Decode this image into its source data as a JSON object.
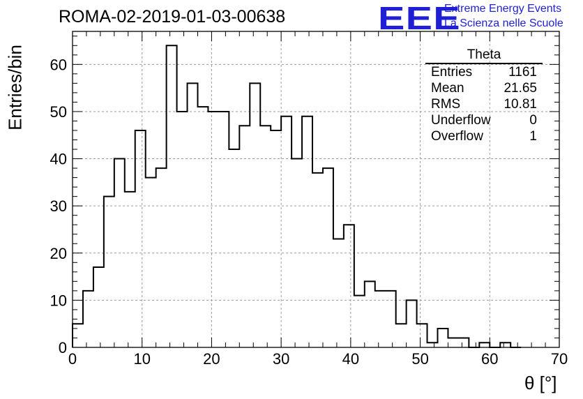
{
  "header": {
    "title": "ROMA-02-2019-01-03-00638"
  },
  "logo": {
    "mark": "EEE",
    "line1": "Extreme Energy Events",
    "line2": "La Scienza nelle Scuole"
  },
  "stats": {
    "title": "Theta",
    "rows": [
      {
        "label": "Entries",
        "value": "1161"
      },
      {
        "label": "Mean",
        "value": "21.65"
      },
      {
        "label": "RMS",
        "value": "10.81"
      },
      {
        "label": "Underflow",
        "value": "0"
      },
      {
        "label": "Overflow",
        "value": "1"
      }
    ]
  },
  "chart_data": {
    "type": "histogram",
    "title": "ROMA-02-2019-01-03-00638",
    "xlabel": "θ [°]",
    "ylabel": "Entries/bin",
    "xlim": [
      0,
      70
    ],
    "ylim": [
      0,
      67
    ],
    "bin_width": 1.5,
    "bin_start": 0,
    "values": [
      5,
      12,
      17,
      32,
      40,
      33,
      46,
      36,
      38,
      64,
      50,
      56,
      51,
      50,
      50,
      42,
      47,
      56,
      47,
      46,
      49,
      40,
      49,
      37,
      38,
      23,
      26,
      11,
      14,
      12,
      12,
      5,
      10,
      5,
      1,
      4,
      2,
      2,
      0,
      1,
      0,
      1,
      0
    ],
    "x_ticks": [
      0,
      10,
      20,
      30,
      40,
      50,
      60,
      70
    ],
    "y_ticks": [
      0,
      10,
      20,
      30,
      40,
      50,
      60
    ],
    "grid": true,
    "line_color": "#000000"
  }
}
